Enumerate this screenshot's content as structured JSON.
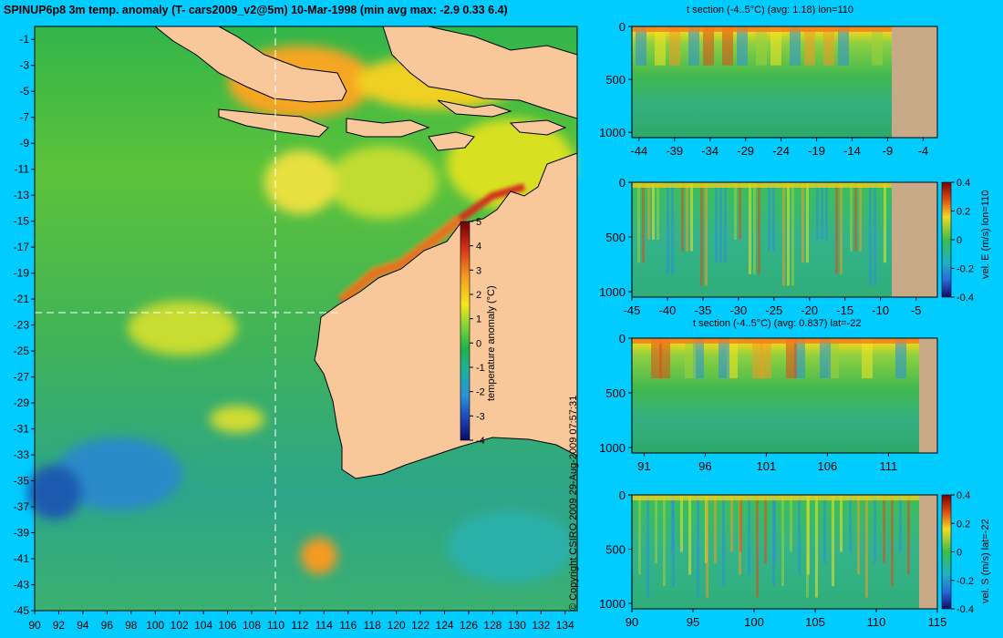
{
  "header": {
    "title": "SPINUP6p8 3m temp. anomaly (T- cars2009_v2@5m) 10-Mar-1998 (min avg max: -2.9 0.33 6.4)",
    "copyright": "© Copyright CSIRO 2009   29-Aug-2009 07:57:31"
  },
  "colors": {
    "background": "#00ccff",
    "land": "#f8c89a",
    "section_land": "#c8aa88"
  },
  "map": {
    "x_ticks": [
      "90",
      "92",
      "94",
      "96",
      "98",
      "100",
      "102",
      "104",
      "106",
      "108",
      "110",
      "112",
      "114",
      "116",
      "118",
      "120",
      "122",
      "124",
      "126",
      "128",
      "130",
      "132",
      "134"
    ],
    "y_ticks": [
      "-1",
      "-3",
      "-5",
      "-7",
      "-9",
      "-11",
      "-13",
      "-15",
      "-17",
      "-19",
      "-21",
      "-23",
      "-25",
      "-27",
      "-29",
      "-31",
      "-33",
      "-35",
      "-37",
      "-39",
      "-41",
      "-43",
      "-45"
    ],
    "section_lon": 110,
    "section_lat": -22,
    "colorbar": {
      "label": "temperature anomaly (°C)",
      "ticks": [
        "5",
        "4",
        "3",
        "2",
        "1",
        "0",
        "-1",
        "-2",
        "-3",
        "-4"
      ]
    }
  },
  "panels": [
    {
      "title": "t section (-4..5°C) (avg: 1.18) lon=110",
      "y_ticks": [
        "0",
        "500",
        "1000"
      ],
      "x_ticks": [
        "-44",
        "-39",
        "-34",
        "-29",
        "-24",
        "-19",
        "-14",
        "-9",
        "-4"
      ],
      "colorbar": null
    },
    {
      "title": "",
      "y_ticks": [
        "0",
        "500",
        "1000"
      ],
      "x_ticks": [
        "-45",
        "-40",
        "-35",
        "-30",
        "-25",
        "-20",
        "-15",
        "-10",
        "-5"
      ],
      "colorbar": {
        "label": "vel. E (m/s) lon=110",
        "ticks": [
          "0.4",
          "0.2",
          "0",
          "-0.2",
          "-0.4"
        ]
      }
    },
    {
      "title": "t section (-4..5°C) (avg: 0.837) lat=-22",
      "y_ticks": [
        "0",
        "500",
        "1000"
      ],
      "x_ticks": [
        "91",
        "96",
        "101",
        "106",
        "111"
      ],
      "colorbar": null
    },
    {
      "title": "",
      "y_ticks": [
        "0",
        "500",
        "1000"
      ],
      "x_ticks": [
        "90",
        "95",
        "100",
        "105",
        "110",
        "115"
      ],
      "colorbar": {
        "label": "vel. S (m/s) lat=-22",
        "ticks": [
          "0.4",
          "0.2",
          "0",
          "-0.2",
          "-0.4"
        ]
      }
    }
  ],
  "chart_data": [
    {
      "type": "heatmap",
      "title": "SPINUP6p8 3m temp. anomaly (T- cars2009_v2@5m) 10-Mar-1998 (min avg max: -2.9 0.33 6.4)",
      "xlim": [
        90,
        135
      ],
      "ylim": [
        -45,
        0
      ],
      "value_range": [
        -4,
        5
      ],
      "stats": {
        "min": -2.9,
        "avg": 0.33,
        "max": 6.4
      }
    },
    {
      "type": "heatmap",
      "title": "t section (-4..5°C) (avg: 1.18) lon=110",
      "xlim": [
        -45,
        -2
      ],
      "ylim": [
        1050,
        0
      ],
      "avg": 1.18
    },
    {
      "type": "heatmap",
      "xlim": [
        -45,
        -2
      ],
      "ylim": [
        1050,
        0
      ],
      "value_range": [
        -0.4,
        0.4
      ],
      "colorbar_label": "vel. E (m/s) lon=110"
    },
    {
      "type": "heatmap",
      "title": "t section (-4..5°C) (avg: 0.837) lat=-22",
      "xlim": [
        90,
        115
      ],
      "ylim": [
        1050,
        0
      ],
      "avg": 0.837
    },
    {
      "type": "heatmap",
      "xlim": [
        90,
        115
      ],
      "ylim": [
        1050,
        0
      ],
      "value_range": [
        -0.4,
        0.4
      ],
      "colorbar_label": "vel. S (m/s) lat=-22"
    }
  ]
}
